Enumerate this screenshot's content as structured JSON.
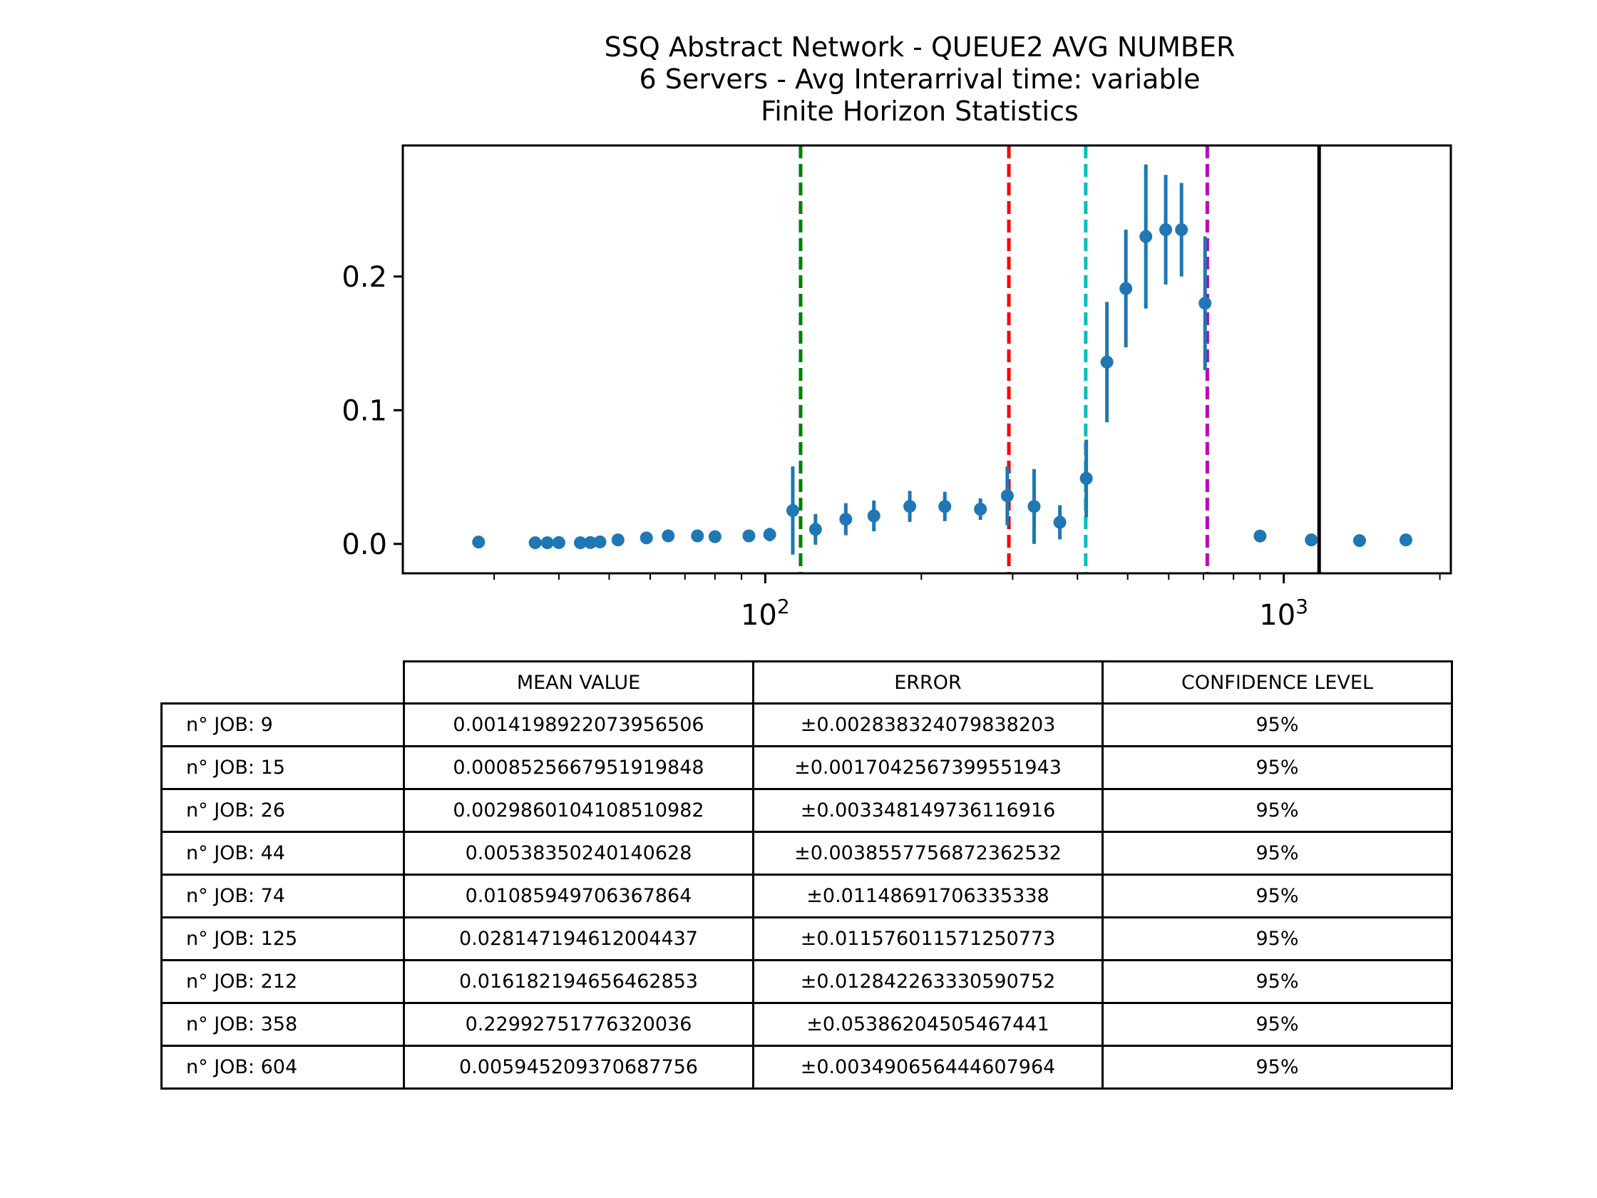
{
  "chart_data": {
    "type": "scatter",
    "title_lines": [
      "SSQ Abstract Network - QUEUE2 AVG NUMBER",
      "6 Servers -  Avg Interarrival time: variable",
      "Finite Horizon Statistics"
    ],
    "x_scale": "log",
    "xlim": [
      20,
      2100
    ],
    "ylim": [
      -0.022,
      0.298
    ],
    "x_ticks": [
      {
        "value": 100,
        "base": "10",
        "exp": "2"
      },
      {
        "value": 1000,
        "base": "10",
        "exp": "3"
      }
    ],
    "y_ticks": [
      {
        "value": 0.0,
        "label": "0.0"
      },
      {
        "value": 0.1,
        "label": "0.1"
      },
      {
        "value": 0.2,
        "label": "0.2"
      }
    ],
    "grid": false,
    "marker_color": "#1f77b4",
    "points": [
      {
        "x": 28,
        "y": 0.0014,
        "err": 0.0
      },
      {
        "x": 36,
        "y": 0.0009,
        "err": 0.0
      },
      {
        "x": 38,
        "y": 0.0009,
        "err": 0.0
      },
      {
        "x": 40,
        "y": 0.001,
        "err": 0.0
      },
      {
        "x": 44,
        "y": 0.0009,
        "err": 0.0
      },
      {
        "x": 46,
        "y": 0.001,
        "err": 0.0
      },
      {
        "x": 48,
        "y": 0.0015,
        "err": 0.0
      },
      {
        "x": 52,
        "y": 0.003,
        "err": 0.0
      },
      {
        "x": 59,
        "y": 0.0045,
        "err": 0.0
      },
      {
        "x": 65,
        "y": 0.006,
        "err": 0.0
      },
      {
        "x": 74,
        "y": 0.006,
        "err": 0.0
      },
      {
        "x": 80,
        "y": 0.0054,
        "err": 0.0
      },
      {
        "x": 93,
        "y": 0.006,
        "err": 0.0
      },
      {
        "x": 102,
        "y": 0.007,
        "err": 0.005
      },
      {
        "x": 113,
        "y": 0.025,
        "err": 0.033
      },
      {
        "x": 125,
        "y": 0.0109,
        "err": 0.0115
      },
      {
        "x": 143,
        "y": 0.0185,
        "err": 0.012
      },
      {
        "x": 162,
        "y": 0.021,
        "err": 0.0115
      },
      {
        "x": 190,
        "y": 0.0281,
        "err": 0.0116
      },
      {
        "x": 222,
        "y": 0.028,
        "err": 0.011
      },
      {
        "x": 260,
        "y": 0.026,
        "err": 0.008
      },
      {
        "x": 293,
        "y": 0.036,
        "err": 0.022
      },
      {
        "x": 330,
        "y": 0.028,
        "err": 0.028
      },
      {
        "x": 370,
        "y": 0.0162,
        "err": 0.0128
      },
      {
        "x": 416,
        "y": 0.049,
        "err": 0.029
      },
      {
        "x": 456,
        "y": 0.136,
        "err": 0.045
      },
      {
        "x": 496,
        "y": 0.191,
        "err": 0.044
      },
      {
        "x": 542,
        "y": 0.2299,
        "err": 0.0539
      },
      {
        "x": 592,
        "y": 0.235,
        "err": 0.041
      },
      {
        "x": 635,
        "y": 0.235,
        "err": 0.035
      },
      {
        "x": 705,
        "y": 0.18,
        "err": 0.05
      },
      {
        "x": 900,
        "y": 0.0059,
        "err": 0.0
      },
      {
        "x": 1130,
        "y": 0.003,
        "err": 0.0
      },
      {
        "x": 1400,
        "y": 0.0025,
        "err": 0.0
      },
      {
        "x": 1720,
        "y": 0.003,
        "err": 0.0
      }
    ],
    "vlines": [
      {
        "x": 117,
        "color": "#008000",
        "style": "dashed"
      },
      {
        "x": 295,
        "color": "#ff0000",
        "style": "dashed"
      },
      {
        "x": 415,
        "color": "#00bfbf",
        "style": "dashed"
      },
      {
        "x": 712,
        "color": "#bf00bf",
        "style": "dashed"
      },
      {
        "x": 1170,
        "color": "#000000",
        "style": "solid"
      }
    ]
  },
  "table": {
    "columns": [
      "MEAN VALUE",
      "ERROR",
      "CONFIDENCE LEVEL"
    ],
    "rows": [
      {
        "label": "n° JOB: 9",
        "mean": "0.0014198922073956506",
        "error": "±0.002838324079838203",
        "confidence": "95%"
      },
      {
        "label": "n° JOB: 15",
        "mean": "0.0008525667951919848",
        "error": "±0.0017042567399551943",
        "confidence": "95%"
      },
      {
        "label": "n° JOB: 26",
        "mean": "0.0029860104108510982",
        "error": "±0.003348149736116916",
        "confidence": "95%"
      },
      {
        "label": "n° JOB: 44",
        "mean": "0.00538350240140628",
        "error": "±0.0038557756872362532",
        "confidence": "95%"
      },
      {
        "label": "n° JOB: 74",
        "mean": "0.01085949706367864",
        "error": "±0.01148691706335338",
        "confidence": "95%"
      },
      {
        "label": "n° JOB: 125",
        "mean": "0.028147194612004437",
        "error": "±0.011576011571250773",
        "confidence": "95%"
      },
      {
        "label": "n° JOB: 212",
        "mean": "0.016182194656462853",
        "error": "±0.012842263330590752",
        "confidence": "95%"
      },
      {
        "label": "n° JOB: 358",
        "mean": "0.22992751776320036",
        "error": "±0.05386204505467441",
        "confidence": "95%"
      },
      {
        "label": "n° JOB: 604",
        "mean": "0.005945209370687756",
        "error": "±0.0034906564446079​64",
        "confidence": "95%"
      }
    ]
  }
}
